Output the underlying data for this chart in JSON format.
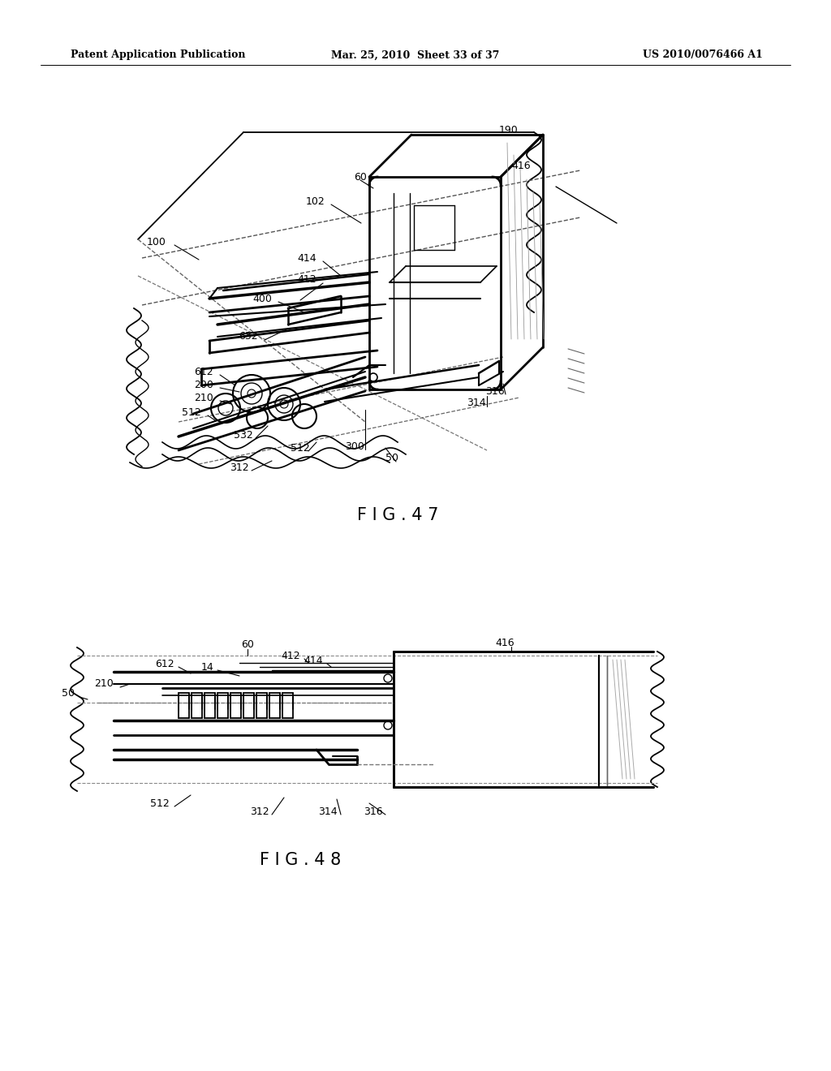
{
  "bg_color": "#ffffff",
  "header_left": "Patent Application Publication",
  "header_mid": "Mar. 25, 2010  Sheet 33 of 37",
  "header_right": "US 2010/0076466 A1",
  "fig47_title": "F I G . 4 7",
  "fig48_title": "F I G . 4 8",
  "line_color": "#000000",
  "header_fontsize": 9,
  "label_fontsize": 9,
  "title_fontsize": 15
}
